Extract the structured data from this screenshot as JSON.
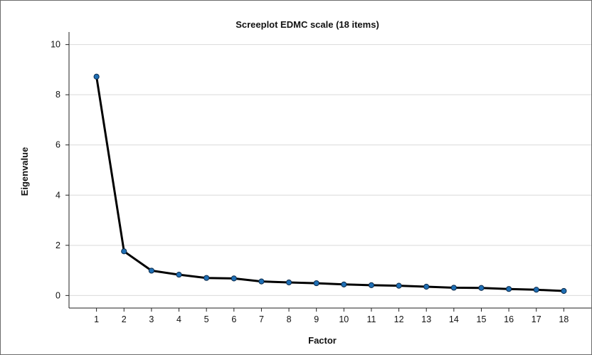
{
  "chart_data": {
    "type": "line",
    "title": "Screeplot EDMC scale (18 items)",
    "xlabel": "Factor",
    "ylabel": "Eigenvalue",
    "x": [
      1,
      2,
      3,
      4,
      5,
      6,
      7,
      8,
      9,
      10,
      11,
      12,
      13,
      14,
      15,
      16,
      17,
      18
    ],
    "y": [
      8.72,
      1.76,
      0.99,
      0.83,
      0.7,
      0.68,
      0.56,
      0.52,
      0.49,
      0.44,
      0.41,
      0.39,
      0.35,
      0.31,
      0.3,
      0.26,
      0.23,
      0.18
    ],
    "xlim": [
      0,
      19
    ],
    "ylim": [
      -0.5,
      10.5
    ],
    "yticks": [
      0,
      2,
      4,
      6,
      8,
      10
    ],
    "xticks": [
      1,
      2,
      3,
      4,
      5,
      6,
      7,
      8,
      9,
      10,
      11,
      12,
      13,
      14,
      15,
      16,
      17,
      18
    ],
    "grid": true,
    "colors": {
      "line": "#000000",
      "marker": "#1f6fb5",
      "grid": "#d9d9d9"
    }
  }
}
